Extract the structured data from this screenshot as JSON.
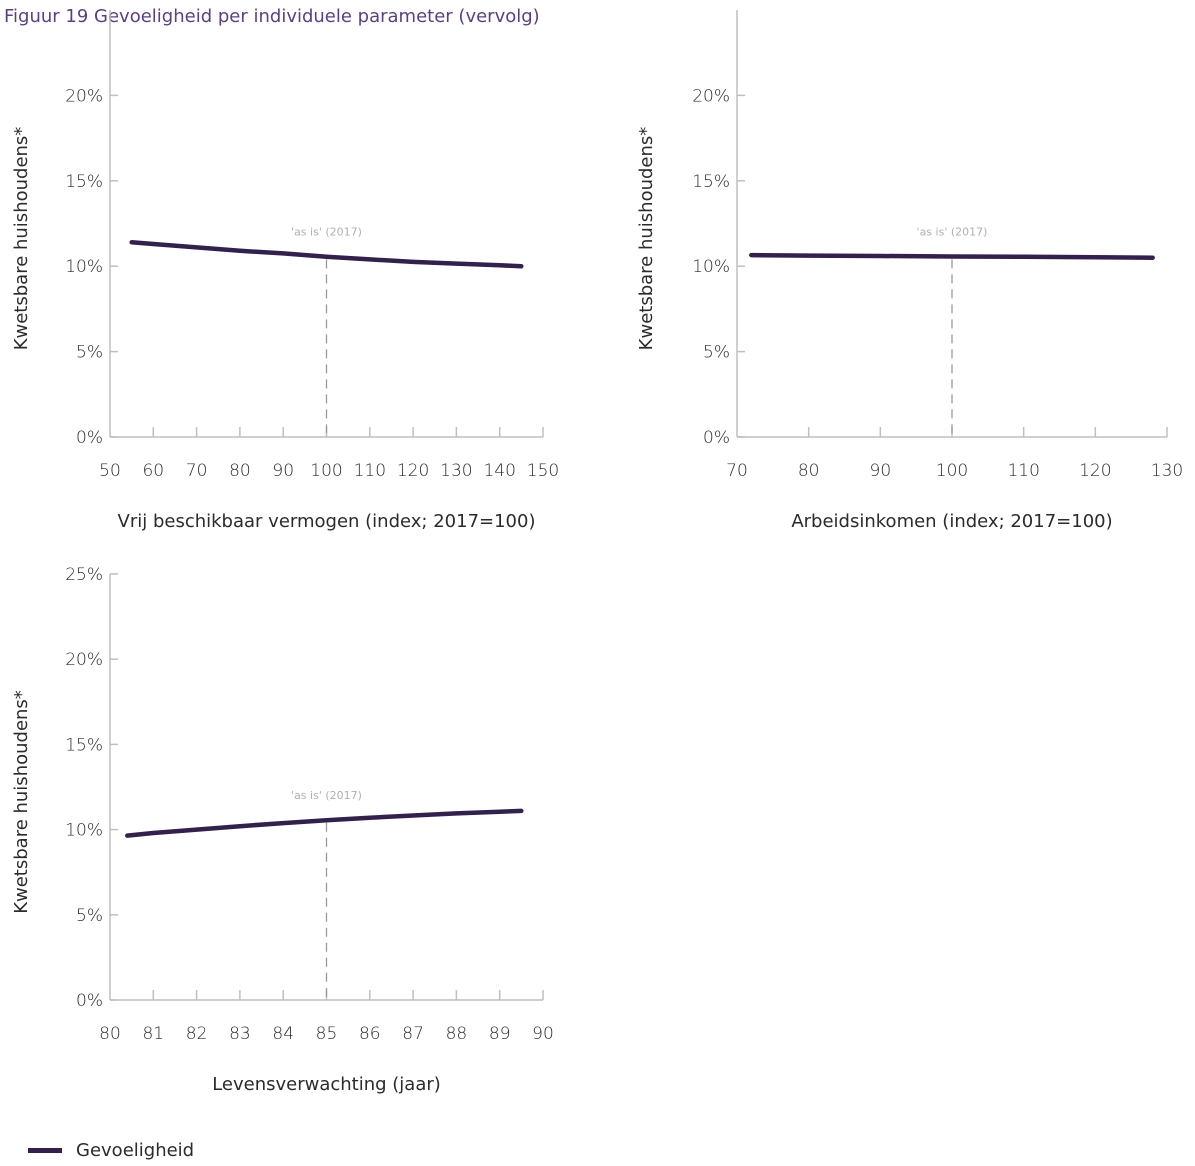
{
  "title": "Figuur 19 Gevoeligheid per individuele parameter (vervolg)",
  "colors": {
    "line": "#33204f",
    "axis": "#bfbfbf",
    "refline": "#9a9a9a",
    "title": "#5b3f86"
  },
  "legend": {
    "label": "Gevoeligheid"
  },
  "chart_data": [
    {
      "type": "line",
      "xlabel": "Vrij beschikbaar vermogen (index; 2017=100)",
      "ylabel": "Kwetsbare huishoudens*",
      "xlim": [
        50,
        150
      ],
      "ylim": [
        0,
        25
      ],
      "xticks": [
        50,
        60,
        70,
        80,
        90,
        100,
        110,
        120,
        130,
        140,
        150
      ],
      "yticks": [
        "0%",
        "5%",
        "10%",
        "15%",
        "20%"
      ],
      "ytick_values": [
        0,
        5,
        10,
        15,
        20
      ],
      "annotation": {
        "x": 100,
        "label": "'as is' (2017)"
      },
      "series": [
        {
          "x": [
            55,
            60,
            70,
            80,
            90,
            100,
            110,
            120,
            130,
            140,
            145
          ],
          "y": [
            11.4,
            11.3,
            11.1,
            10.9,
            10.75,
            10.55,
            10.4,
            10.25,
            10.15,
            10.05,
            10.0
          ]
        }
      ]
    },
    {
      "type": "line",
      "xlabel": "Arbeidsinkomen (index; 2017=100)",
      "ylabel": "Kwetsbare huishoudens*",
      "xlim": [
        70,
        130
      ],
      "ylim": [
        0,
        25
      ],
      "xticks": [
        70,
        80,
        90,
        100,
        110,
        120,
        130
      ],
      "yticks": [
        "0%",
        "5%",
        "10%",
        "15%",
        "20%"
      ],
      "ytick_values": [
        0,
        5,
        10,
        15,
        20
      ],
      "annotation": {
        "x": 100,
        "label": "'as is' (2017)"
      },
      "series": [
        {
          "x": [
            72,
            80,
            90,
            100,
            110,
            120,
            128
          ],
          "y": [
            10.65,
            10.62,
            10.6,
            10.57,
            10.55,
            10.52,
            10.5
          ]
        }
      ]
    },
    {
      "type": "line",
      "xlabel": "Levensverwachting (jaar)",
      "ylabel": "Kwetsbare huishoudens*",
      "xlim": [
        80,
        90
      ],
      "ylim": [
        0,
        25
      ],
      "xticks": [
        80,
        81,
        82,
        83,
        84,
        85,
        86,
        87,
        88,
        89,
        90
      ],
      "yticks": [
        "0%",
        "5%",
        "10%",
        "15%",
        "20%",
        "25%"
      ],
      "ytick_values": [
        0,
        5,
        10,
        15,
        20,
        25
      ],
      "annotation": {
        "x": 85,
        "label": "'as is' (2017)"
      },
      "series": [
        {
          "x": [
            80.4,
            81,
            82,
            83,
            84,
            85,
            86,
            87,
            88,
            89,
            89.5
          ],
          "y": [
            9.65,
            9.8,
            10.0,
            10.2,
            10.38,
            10.55,
            10.7,
            10.83,
            10.95,
            11.05,
            11.1
          ]
        }
      ]
    }
  ]
}
